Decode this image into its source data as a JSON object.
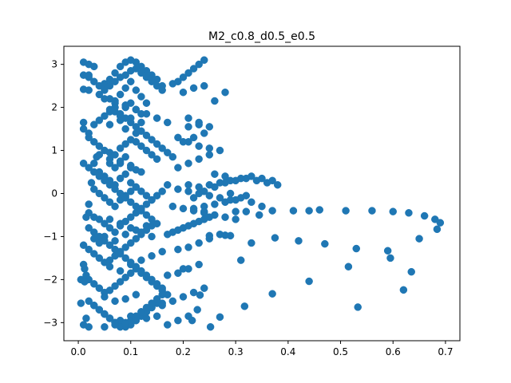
{
  "chart_data": {
    "type": "scatter",
    "title": "M2_c0.8_d0.5_e0.5",
    "xlabel": "",
    "ylabel": "",
    "xlim": [
      -0.0275,
      0.7275
    ],
    "ylim": [
      -3.42,
      3.42
    ],
    "xticks": [
      0.0,
      0.1,
      0.2,
      0.3,
      0.4,
      0.5,
      0.6,
      0.7
    ],
    "xtick_labels": [
      "0.0",
      "0.1",
      "0.2",
      "0.3",
      "0.4",
      "0.5",
      "0.6",
      "0.7"
    ],
    "yticks": [
      -3,
      -2,
      -1,
      0,
      1,
      2,
      3
    ],
    "ytick_labels": [
      "−3",
      "−2",
      "−1",
      "0",
      "1",
      "2",
      "3"
    ],
    "grid": false,
    "color": "#1f77b4",
    "series": [
      {
        "x": [
          0.01,
          0.02,
          0.03,
          0.01,
          0.02,
          0.03,
          0.04,
          0.02,
          0.05,
          0.06,
          0.07,
          0.08,
          0.09,
          0.1,
          0.11,
          0.12,
          0.13,
          0.14,
          0.15,
          0.16,
          0.06,
          0.07,
          0.08,
          0.09,
          0.1,
          0.11,
          0.12,
          0.13,
          0.07,
          0.08,
          0.09,
          0.1,
          0.11,
          0.12,
          0.06,
          0.08,
          0.1,
          0.12,
          0.09,
          0.11,
          0.02,
          0.03,
          0.04,
          0.05,
          0.06,
          0.07,
          0.08,
          0.09,
          0.1,
          0.11,
          0.12,
          0.13,
          0.14,
          0.15,
          0.06,
          0.07,
          0.08,
          0.09,
          0.1,
          0.11,
          0.04,
          0.05,
          0.06,
          0.07,
          0.08,
          0.09,
          0.1,
          0.11,
          0.12,
          0.13,
          0.14,
          0.03,
          0.04,
          0.05,
          0.06,
          0.07,
          0.08,
          0.09,
          0.1,
          0.11,
          0.02,
          0.03,
          0.04,
          0.05,
          0.06,
          0.07,
          0.08,
          0.09,
          0.1,
          0.11,
          0.12,
          0.13,
          0.14,
          0.15,
          0.16,
          0.05,
          0.07,
          0.09,
          0.11,
          0.13,
          0.01,
          0.02,
          0.03,
          0.04,
          0.05,
          0.06,
          0.07,
          0.08,
          0.09,
          0.1,
          0.11,
          0.12,
          0.13,
          0.14,
          0.06,
          0.08,
          0.1,
          0.12,
          0.14,
          0.16,
          0.02,
          0.03,
          0.04,
          0.05,
          0.06,
          0.07,
          0.08,
          0.09,
          0.1,
          0.11,
          0.12,
          0.13,
          0.14,
          0.15,
          0.16,
          0.17,
          0.05,
          0.07,
          0.09,
          0.11,
          0.03,
          0.04,
          0.05,
          0.06,
          0.07,
          0.08,
          0.09,
          0.1,
          0.11,
          0.12,
          0.13,
          0.14,
          0.15,
          0.05,
          0.06,
          0.08,
          0.1,
          0.12,
          0.14,
          0.16,
          0.01,
          0.02,
          0.03,
          0.04,
          0.05,
          0.06,
          0.07,
          0.08,
          0.09,
          0.1,
          0.11,
          0.12,
          0.13,
          0.14,
          0.15,
          0.16,
          0.17,
          0.18,
          0.06,
          0.09,
          0.04,
          0.05,
          0.06,
          0.07,
          0.08,
          0.09,
          0.1,
          0.11,
          0.12,
          0.13,
          0.14,
          0.15,
          0.16,
          0.05,
          0.07,
          0.09,
          0.11,
          0.13,
          0.15,
          0.17,
          0.01,
          0.02,
          0.03,
          0.04,
          0.05,
          0.06,
          0.07,
          0.08,
          0.09,
          0.1,
          0.11,
          0.12,
          0.13,
          0.14,
          0.15,
          0.04,
          0.06,
          0.08,
          0.1,
          0.12,
          0.02,
          0.03,
          0.04,
          0.05,
          0.06,
          0.07,
          0.08,
          0.09,
          0.1,
          0.11,
          0.12,
          0.13,
          0.14,
          0.15,
          0.16,
          0.06,
          0.08,
          0.1,
          0.12,
          0.14,
          0.03,
          0.04,
          0.05,
          0.06,
          0.07,
          0.08,
          0.09,
          0.1,
          0.11,
          0.12,
          0.13,
          0.14,
          0.15,
          0.16,
          0.05,
          0.07,
          0.09,
          0.11,
          0.13,
          0.15,
          0.18,
          0.19,
          0.2,
          0.21,
          0.22,
          0.23,
          0.24,
          0.2,
          0.22,
          0.24,
          0.26,
          0.28,
          0.21,
          0.23,
          0.25,
          0.19,
          0.21,
          0.23,
          0.25,
          0.27,
          0.17,
          0.19,
          0.21,
          0.23,
          0.25,
          0.27,
          0.29,
          0.18,
          0.2,
          0.22,
          0.24,
          0.26,
          0.28,
          0.3,
          0.19,
          0.21,
          0.23,
          0.25,
          0.27,
          0.2,
          0.22,
          0.24,
          0.26,
          0.28,
          0.3,
          0.32,
          0.34,
          0.36,
          0.21,
          0.23,
          0.25,
          0.27,
          0.29,
          0.31,
          0.33,
          0.35,
          0.37,
          0.38,
          0.26,
          0.28,
          0.22,
          0.24,
          0.26,
          0.28,
          0.3,
          0.32,
          0.29,
          0.31,
          0.33,
          0.35,
          0.19,
          0.21,
          0.23,
          0.25,
          0.2,
          0.22,
          0.24,
          0.21,
          0.23,
          0.17,
          0.18,
          0.19,
          0.2,
          0.21,
          0.22,
          0.23,
          0.24,
          0.25,
          0.17,
          0.19,
          0.21,
          0.23,
          0.16,
          0.18,
          0.2,
          0.22,
          0.24,
          0.17,
          0.19,
          0.21,
          0.41,
          0.46,
          0.51,
          0.56,
          0.6,
          0.63,
          0.66,
          0.68,
          0.69,
          0.684,
          0.65,
          0.635,
          0.62,
          0.59,
          0.595,
          0.53,
          0.515,
          0.47,
          0.42,
          0.375,
          0.31,
          0.37,
          0.44,
          0.533,
          0.317,
          0.252,
          0.27,
          0.217,
          0.227,
          0.232,
          0.29,
          0.33,
          0.28,
          0.25,
          0.32,
          0.44,
          0.37,
          0.345,
          0.24,
          0.3,
          0.01,
          0.012,
          0.015,
          0.005,
          0.005,
          0.015,
          0.01,
          0.02,
          0.02,
          0.012,
          0.01,
          0.025,
          0.03,
          0.035,
          0.02,
          0.015,
          0.03,
          0.04,
          0.01,
          0.02
        ],
        "y": [
          3.05,
          3.0,
          2.95,
          2.75,
          2.7,
          2.6,
          2.5,
          2.4,
          2.55,
          2.65,
          2.8,
          2.95,
          3.05,
          3.1,
          3.05,
          2.95,
          2.85,
          2.75,
          2.65,
          2.5,
          2.2,
          2.1,
          2.3,
          2.45,
          2.6,
          2.4,
          2.25,
          2.1,
          1.9,
          1.8,
          2.0,
          2.1,
          1.95,
          1.85,
          1.6,
          1.7,
          1.75,
          1.65,
          1.5,
          1.4,
          1.3,
          1.2,
          1.1,
          1.0,
          0.95,
          0.9,
          1.05,
          1.15,
          1.25,
          1.2,
          1.1,
          1.0,
          0.9,
          0.8,
          0.7,
          0.6,
          0.75,
          0.85,
          0.65,
          0.55,
          0.5,
          0.4,
          0.3,
          0.2,
          0.35,
          0.45,
          0.25,
          0.15,
          0.05,
          -0.05,
          -0.15,
          0.1,
          0.0,
          -0.1,
          -0.2,
          -0.3,
          -0.15,
          -0.05,
          0.05,
          0.15,
          -0.45,
          -0.55,
          -0.6,
          -0.7,
          -0.8,
          -0.9,
          -0.75,
          -0.65,
          -0.55,
          -0.45,
          -0.35,
          -0.25,
          -0.15,
          -0.05,
          0.05,
          -1.0,
          -1.1,
          -0.95,
          -0.85,
          -0.75,
          -1.2,
          -1.3,
          -1.4,
          -1.5,
          -1.6,
          -1.55,
          -1.45,
          -1.35,
          -1.25,
          -1.15,
          -1.05,
          -0.95,
          -0.85,
          -0.75,
          -1.7,
          -1.8,
          -1.65,
          -1.55,
          -1.45,
          -1.35,
          -2.0,
          -2.1,
          -2.2,
          -2.3,
          -2.25,
          -2.15,
          -2.05,
          -1.95,
          -1.85,
          -1.75,
          -1.85,
          -1.95,
          -2.05,
          -2.15,
          -2.25,
          -2.35,
          -2.4,
          -2.5,
          -2.45,
          -2.35,
          -2.6,
          -2.7,
          -2.8,
          -2.9,
          -3.0,
          -3.05,
          -3.1,
          -3.05,
          -2.95,
          -2.85,
          -2.75,
          -2.65,
          -2.55,
          -2.8,
          -2.9,
          -2.95,
          -2.85,
          -2.75,
          -2.65,
          -2.55,
          1.5,
          1.4,
          1.6,
          1.7,
          1.8,
          1.9,
          2.0,
          1.85,
          1.75,
          1.65,
          1.55,
          1.45,
          1.35,
          1.25,
          1.15,
          1.05,
          0.95,
          0.85,
          1.95,
          2.05,
          2.3,
          2.4,
          2.5,
          2.6,
          2.7,
          2.75,
          2.85,
          2.9,
          2.8,
          2.7,
          2.6,
          2.5,
          2.4,
          2.2,
          2.15,
          2.05,
          1.95,
          1.85,
          1.75,
          1.65,
          0.7,
          0.6,
          0.5,
          0.4,
          0.3,
          0.2,
          0.1,
          0.0,
          -0.1,
          -0.2,
          -0.3,
          -0.4,
          -0.5,
          -0.6,
          -0.7,
          0.9,
          0.8,
          0.7,
          0.6,
          0.5,
          -0.8,
          -0.9,
          -1.0,
          -1.1,
          -1.2,
          -1.3,
          -1.4,
          -1.5,
          -1.6,
          -1.7,
          -1.8,
          -1.9,
          -2.0,
          -2.1,
          -2.2,
          -0.6,
          -0.7,
          -0.8,
          -0.9,
          -1.0,
          -2.6,
          -2.7,
          -2.8,
          -2.9,
          -3.0,
          -3.1,
          -3.05,
          -2.95,
          -2.85,
          -2.75,
          -2.65,
          -2.55,
          -2.45,
          -2.35,
          -3.1,
          -3.05,
          -3.0,
          -2.95,
          -2.9,
          -2.85,
          2.55,
          2.6,
          2.7,
          2.8,
          2.9,
          3.0,
          3.1,
          2.35,
          2.45,
          2.5,
          2.15,
          2.35,
          1.75,
          1.6,
          1.55,
          1.3,
          1.2,
          1.1,
          1.05,
          1.0,
          0.2,
          0.1,
          0.05,
          0.0,
          -0.05,
          -0.1,
          -0.15,
          -0.3,
          -0.35,
          -0.4,
          -0.45,
          -0.5,
          -0.55,
          -0.6,
          -1.3,
          -1.25,
          -1.15,
          -1.05,
          -0.95,
          -1.75,
          -0.1,
          0.05,
          0.15,
          0.25,
          0.3,
          0.35,
          0.3,
          0.25,
          0.2,
          0.15,
          0.2,
          0.25,
          0.3,
          0.35,
          0.4,
          0.35,
          0.3,
          0.2,
          0.45,
          0.4,
          -0.35,
          -0.3,
          -0.25,
          -0.2,
          -0.15,
          -0.05,
          0.0,
          -0.1,
          -0.2,
          -0.3,
          0.6,
          0.7,
          0.8,
          0.9,
          1.2,
          1.3,
          1.4,
          1.55,
          1.65,
          -0.95,
          -0.9,
          -0.85,
          -0.8,
          -0.75,
          -0.7,
          -0.65,
          -0.6,
          -0.55,
          -1.9,
          -1.85,
          -1.75,
          -1.65,
          -2.6,
          -2.5,
          -2.4,
          -2.3,
          -2.2,
          -3.05,
          -2.95,
          -2.85,
          -0.4,
          -0.38,
          -0.4,
          -0.4,
          -0.42,
          -0.45,
          -0.52,
          -0.6,
          -0.68,
          -0.83,
          -1.05,
          -1.82,
          -2.24,
          -1.33,
          -1.5,
          -1.28,
          -1.7,
          -1.17,
          -1.1,
          -1.03,
          -1.55,
          -2.33,
          -2.04,
          -2.64,
          -2.62,
          -3.1,
          -2.87,
          -2.95,
          -2.7,
          -2.36,
          -0.98,
          -1.15,
          -0.97,
          -0.98,
          -0.42,
          -0.4,
          -0.4,
          -0.5,
          -0.42,
          -0.42,
          -1.65,
          -1.75,
          -1.9,
          -2.0,
          -2.55,
          -2.9,
          -3.05,
          -3.1,
          -2.5,
          -2.05,
          1.65,
          0.25,
          0.7,
          0.85,
          -0.25,
          -0.55,
          -1.05,
          -1.15,
          2.42,
          2.75
        ]
      }
    ]
  }
}
